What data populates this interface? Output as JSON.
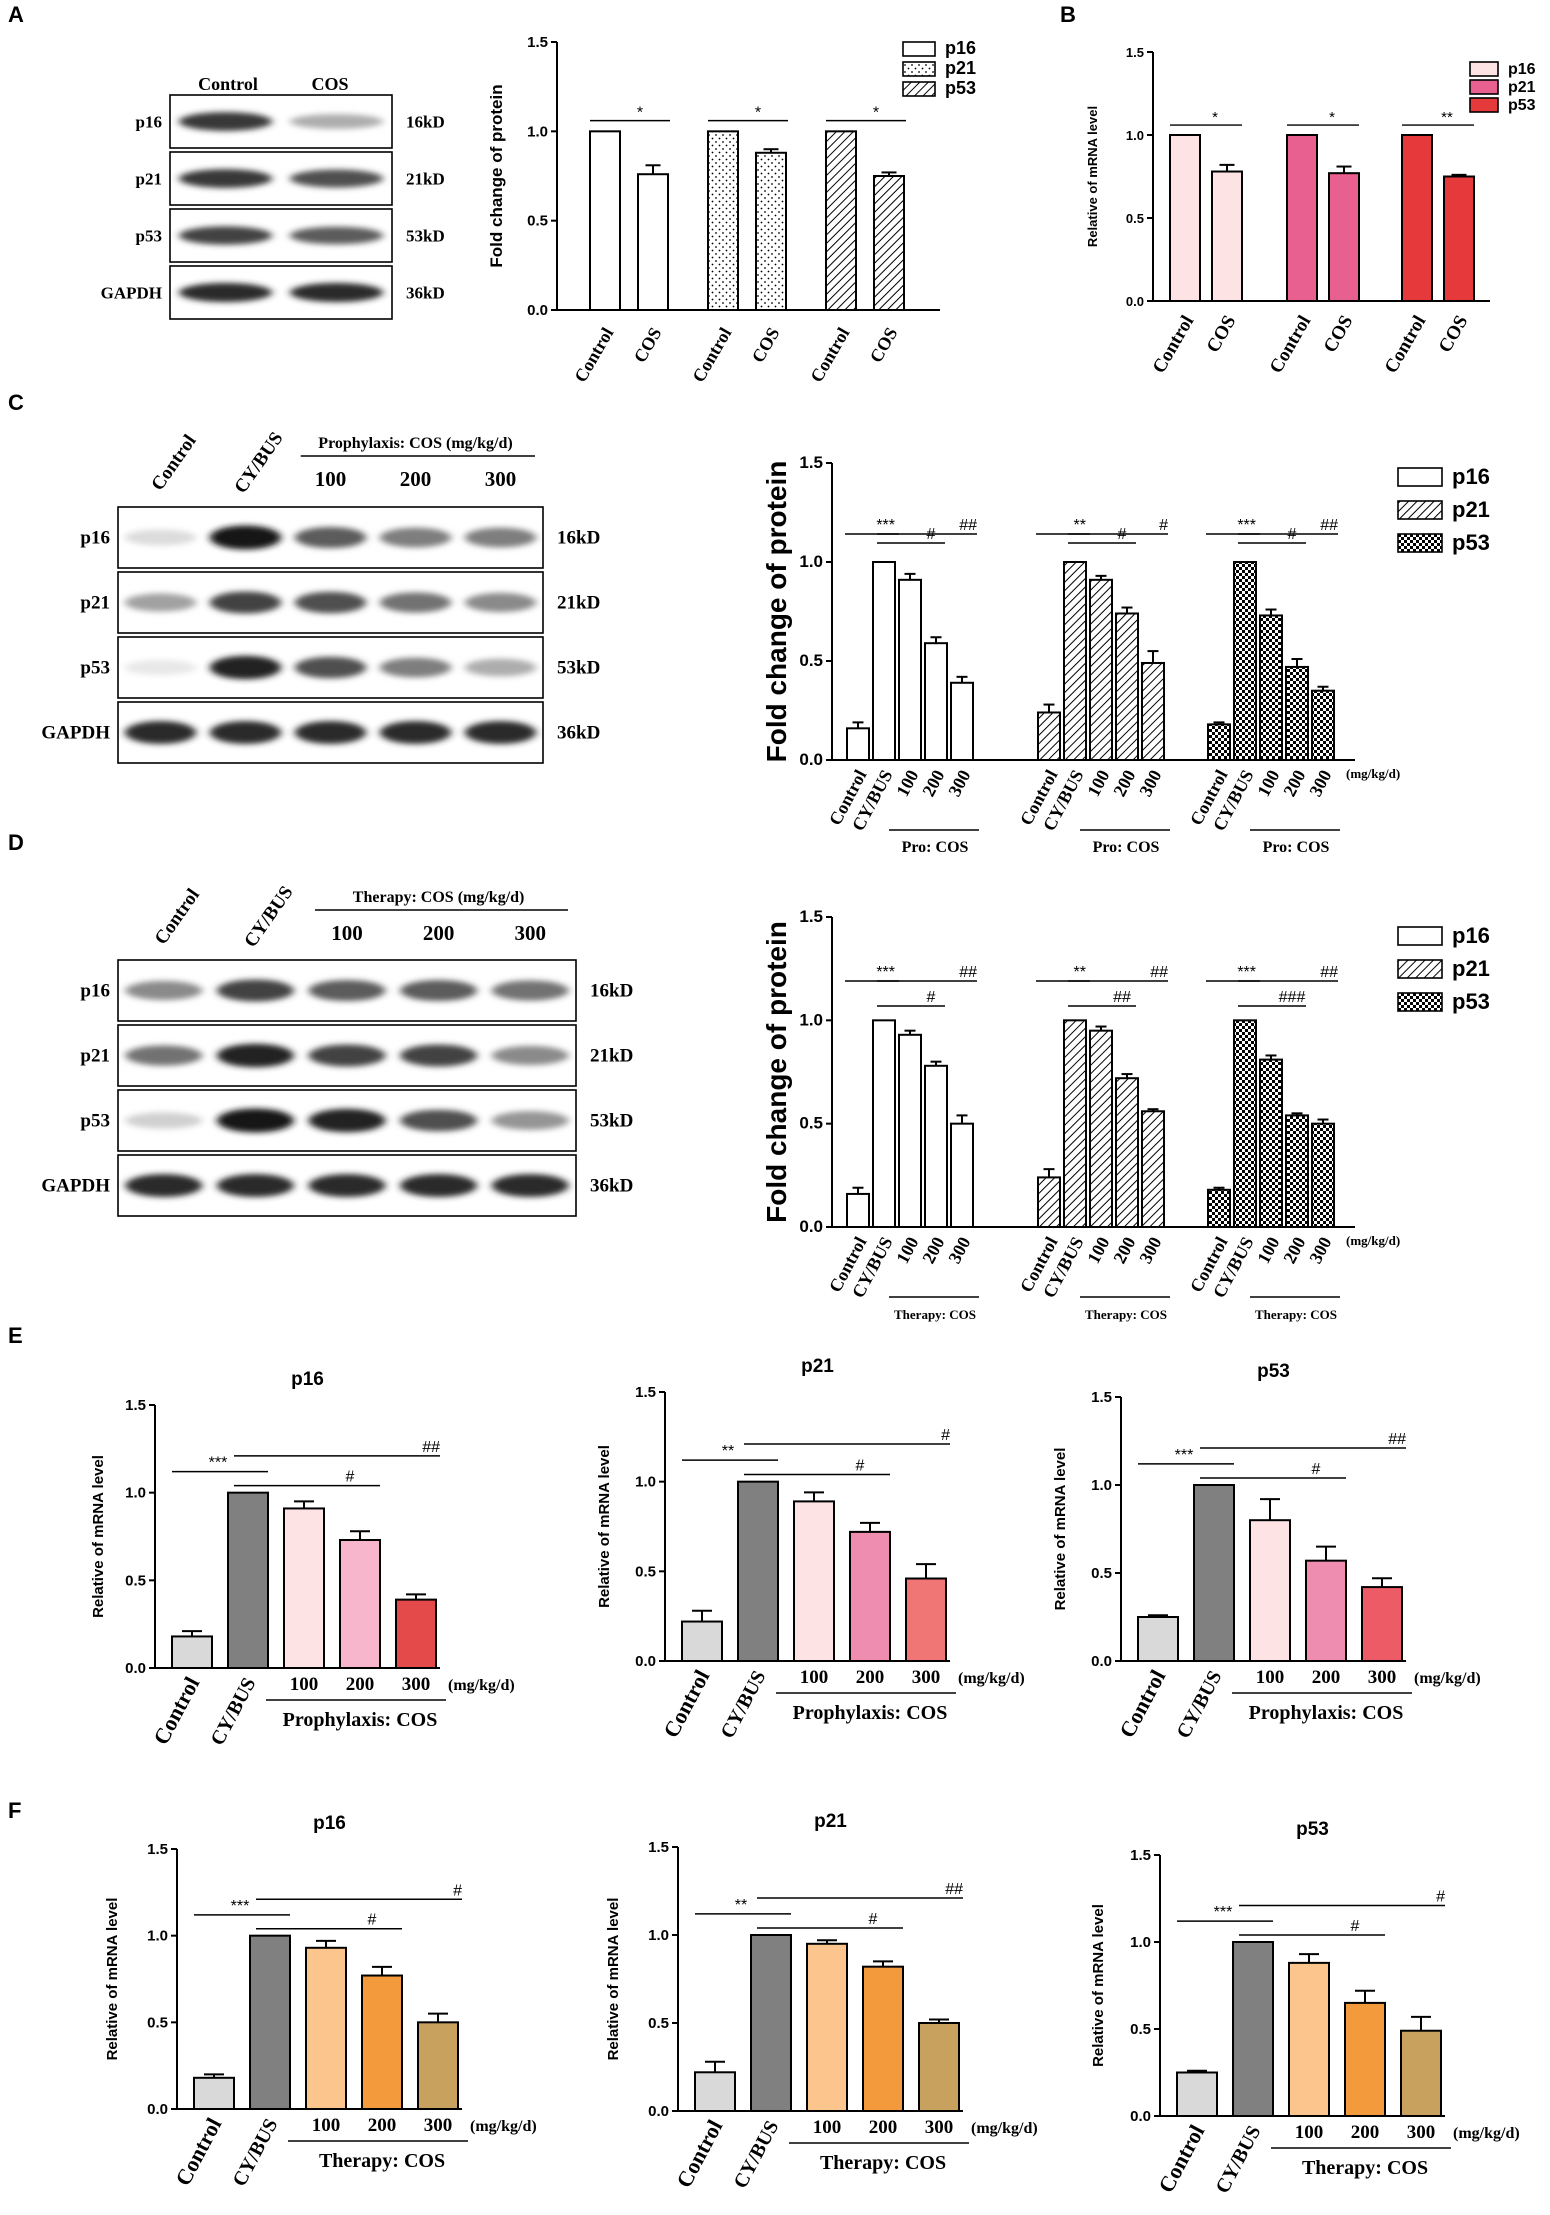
{
  "panels": [
    {
      "id": "A",
      "letter": "A"
    },
    {
      "id": "B",
      "letter": "B"
    },
    {
      "id": "C",
      "letter": "C"
    },
    {
      "id": "D",
      "letter": "D"
    },
    {
      "id": "E",
      "letter": "E"
    },
    {
      "id": "F",
      "letter": "F"
    }
  ],
  "blots": {
    "A": {
      "lanes": [
        "Control",
        "COS"
      ],
      "rows": [
        {
          "name": "p16",
          "kd": "16kD",
          "intensity": [
            0.85,
            0.35
          ]
        },
        {
          "name": "p21",
          "kd": "21kD",
          "intensity": [
            0.85,
            0.75
          ]
        },
        {
          "name": "p53",
          "kd": "53kD",
          "intensity": [
            0.8,
            0.7
          ]
        },
        {
          "name": "GAPDH",
          "kd": "36kD",
          "intensity": [
            0.9,
            0.9
          ]
        }
      ]
    },
    "C": {
      "lanes": [
        "Control",
        "CY/BUS"
      ],
      "group_label": "Prophylaxis: COS (mg/kg/d)",
      "doses": [
        "100",
        "200",
        "300"
      ],
      "rows": [
        {
          "name": "p16",
          "kd": "16kD",
          "intensity": [
            0.15,
            1.0,
            0.7,
            0.55,
            0.55
          ]
        },
        {
          "name": "p21",
          "kd": "21kD",
          "intensity": [
            0.4,
            0.8,
            0.75,
            0.6,
            0.5
          ]
        },
        {
          "name": "p53",
          "kd": "53kD",
          "intensity": [
            0.1,
            0.95,
            0.75,
            0.55,
            0.35
          ]
        },
        {
          "name": "GAPDH",
          "kd": "36kD",
          "intensity": [
            0.9,
            0.9,
            0.9,
            0.9,
            0.9
          ]
        }
      ]
    },
    "D": {
      "lanes": [
        "Control",
        "CY/BUS"
      ],
      "group_label": "Therapy: COS (mg/kg/d)",
      "doses": [
        "100",
        "200",
        "300"
      ],
      "rows": [
        {
          "name": "p16",
          "kd": "16kD",
          "intensity": [
            0.5,
            0.8,
            0.7,
            0.7,
            0.6
          ]
        },
        {
          "name": "p21",
          "kd": "21kD",
          "intensity": [
            0.6,
            0.95,
            0.8,
            0.8,
            0.5
          ]
        },
        {
          "name": "p53",
          "kd": "53kD",
          "intensity": [
            0.2,
            1.0,
            0.95,
            0.75,
            0.45
          ]
        },
        {
          "name": "GAPDH",
          "kd": "36kD",
          "intensity": [
            0.9,
            0.9,
            0.9,
            0.9,
            0.9
          ]
        }
      ]
    }
  },
  "chart_data": [
    {
      "id": "A",
      "type": "bar",
      "ylabel": "Fold change of protein",
      "ylim": [
        0,
        1.5
      ],
      "yticks": [
        "0.0",
        "0.5",
        "1.0",
        "1.5"
      ],
      "legend": [
        "p16",
        "p21",
        "p53"
      ],
      "legend_position": "top-right",
      "categories": [
        "Control",
        "COS"
      ],
      "series": [
        {
          "name": "p16",
          "values": [
            1.0,
            0.76
          ],
          "errors": [
            0,
            0.05
          ],
          "sig": "*"
        },
        {
          "name": "p21",
          "values": [
            1.0,
            0.88
          ],
          "errors": [
            0,
            0.02
          ],
          "sig": "*"
        },
        {
          "name": "p53",
          "values": [
            1.0,
            0.75
          ],
          "errors": [
            0,
            0.02
          ],
          "sig": "*"
        }
      ]
    },
    {
      "id": "B",
      "type": "bar",
      "ylabel": "Relative of mRNA level",
      "ylim": [
        0,
        1.5
      ],
      "yticks": [
        "0.0",
        "0.5",
        "1.0",
        "1.5"
      ],
      "legend": [
        "p16",
        "p21",
        "p53"
      ],
      "legend_position": "top-right",
      "categories": [
        "Control",
        "COS"
      ],
      "colors": [
        "#fde3e3",
        "#e8608f",
        "#e6393b"
      ],
      "series": [
        {
          "name": "p16",
          "values": [
            1.0,
            0.78
          ],
          "errors": [
            0,
            0.04
          ],
          "sig": "*"
        },
        {
          "name": "p21",
          "values": [
            1.0,
            0.77
          ],
          "errors": [
            0,
            0.04
          ],
          "sig": "*"
        },
        {
          "name": "p53",
          "values": [
            1.0,
            0.75
          ],
          "errors": [
            0,
            0.01
          ],
          "sig": "**"
        }
      ]
    },
    {
      "id": "C",
      "type": "bar",
      "ylabel": "Fold change of protein",
      "ylim": [
        0,
        1.5
      ],
      "yticks": [
        "0.0",
        "0.5",
        "1.0",
        "1.5"
      ],
      "legend": [
        "p16",
        "p21",
        "p53"
      ],
      "legend_position": "top-right",
      "categories": [
        "Control",
        "CY/BUS",
        "100",
        "200",
        "300"
      ],
      "group_label": "Pro: COS",
      "unit": "(mg/kg/d)",
      "series": [
        {
          "name": "p16",
          "values": [
            0.16,
            1.0,
            0.91,
            0.59,
            0.39
          ],
          "errors": [
            0.03,
            0,
            0.03,
            0.03,
            0.03
          ],
          "sig": [
            "***",
            "#",
            "##"
          ]
        },
        {
          "name": "p21",
          "values": [
            0.24,
            1.0,
            0.91,
            0.74,
            0.49
          ],
          "errors": [
            0.04,
            0,
            0.02,
            0.03,
            0.06
          ],
          "sig": [
            "**",
            "#",
            "#"
          ]
        },
        {
          "name": "p53",
          "values": [
            0.18,
            1.0,
            0.73,
            0.47,
            0.35
          ],
          "errors": [
            0.01,
            0,
            0.03,
            0.04,
            0.02
          ],
          "sig": [
            "***",
            "#",
            "##"
          ]
        }
      ]
    },
    {
      "id": "D",
      "type": "bar",
      "ylabel": "Fold change of protein",
      "ylim": [
        0,
        1.5
      ],
      "yticks": [
        "0.0",
        "0.5",
        "1.0",
        "1.5"
      ],
      "legend": [
        "p16",
        "p21",
        "p53"
      ],
      "legend_position": "top-right",
      "categories": [
        "Control",
        "CY/BUS",
        "100",
        "200",
        "300"
      ],
      "group_label": "Therapy: COS",
      "unit": "(mg/kg/d)",
      "series": [
        {
          "name": "p16",
          "values": [
            0.16,
            1.0,
            0.93,
            0.78,
            0.5
          ],
          "errors": [
            0.03,
            0,
            0.02,
            0.02,
            0.04
          ],
          "sig": [
            "***",
            "#",
            "##"
          ]
        },
        {
          "name": "p21",
          "values": [
            0.24,
            1.0,
            0.95,
            0.72,
            0.56
          ],
          "errors": [
            0.04,
            0,
            0.02,
            0.02,
            0.01
          ],
          "sig": [
            "**",
            "##",
            "##"
          ]
        },
        {
          "name": "p53",
          "values": [
            0.18,
            1.0,
            0.81,
            0.54,
            0.5
          ],
          "errors": [
            0.01,
            0,
            0.02,
            0.01,
            0.02
          ],
          "sig": [
            "***",
            "###",
            "##"
          ]
        }
      ]
    },
    {
      "id": "E1",
      "type": "bar",
      "title": "p16",
      "ylabel": "Relative of mRNA level",
      "ylim": [
        0,
        1.5
      ],
      "yticks": [
        "0.0",
        "0.5",
        "1.0",
        "1.5"
      ],
      "categories": [
        "Control",
        "CY/BUS",
        "100",
        "200",
        "300"
      ],
      "unit": "(mg/kg/d)",
      "group_label": "Prophylaxis: COS",
      "values": [
        0.18,
        1.0,
        0.91,
        0.73,
        0.39
      ],
      "errors": [
        0.03,
        0,
        0.04,
        0.05,
        0.03
      ],
      "colors": [
        "#d9d9d9",
        "#808080",
        "#fde3e3",
        "#f7b6cc",
        "#e44a4a"
      ],
      "sig": [
        "***",
        "#",
        "##"
      ]
    },
    {
      "id": "E2",
      "type": "bar",
      "title": "p21",
      "ylabel": "Relative of mRNA level",
      "ylim": [
        0,
        1.5
      ],
      "yticks": [
        "0.0",
        "0.5",
        "1.0",
        "1.5"
      ],
      "categories": [
        "Control",
        "CY/BUS",
        "100",
        "200",
        "300"
      ],
      "unit": "(mg/kg/d)",
      "group_label": "Prophylaxis: COS",
      "values": [
        0.22,
        1.0,
        0.89,
        0.72,
        0.46
      ],
      "errors": [
        0.06,
        0,
        0.05,
        0.05,
        0.08
      ],
      "colors": [
        "#d9d9d9",
        "#808080",
        "#fde3e3",
        "#ee8db0",
        "#f07676"
      ],
      "sig": [
        "**",
        "#",
        "#"
      ]
    },
    {
      "id": "E3",
      "type": "bar",
      "title": "p53",
      "ylabel": "Relative of mRNA level",
      "ylim": [
        0,
        1.5
      ],
      "yticks": [
        "0.0",
        "0.5",
        "1.0",
        "1.5"
      ],
      "categories": [
        "Control",
        "CY/BUS",
        "100",
        "200",
        "300"
      ],
      "unit": "(mg/kg/d)",
      "group_label": "Prophylaxis: COS",
      "values": [
        0.25,
        1.0,
        0.8,
        0.57,
        0.42
      ],
      "errors": [
        0.01,
        0,
        0.12,
        0.08,
        0.05
      ],
      "colors": [
        "#d9d9d9",
        "#808080",
        "#fde3e3",
        "#ee8db0",
        "#ec5b66"
      ],
      "sig": [
        "***",
        "#",
        "##"
      ]
    },
    {
      "id": "F1",
      "type": "bar",
      "title": "p16",
      "ylabel": "Relative of mRNA level",
      "ylim": [
        0,
        1.5
      ],
      "yticks": [
        "0.0",
        "0.5",
        "1.0",
        "1.5"
      ],
      "categories": [
        "Control",
        "CY/BUS",
        "100",
        "200",
        "300"
      ],
      "unit": "(mg/kg/d)",
      "group_label": "Therapy: COS",
      "values": [
        0.18,
        1.0,
        0.93,
        0.77,
        0.5
      ],
      "errors": [
        0.02,
        0,
        0.04,
        0.05,
        0.05
      ],
      "colors": [
        "#d9d9d9",
        "#808080",
        "#fcc58e",
        "#f39a3c",
        "#c9a15e"
      ],
      "sig": [
        "***",
        "#",
        "#"
      ]
    },
    {
      "id": "F2",
      "type": "bar",
      "title": "p21",
      "ylabel": "Relative of mRNA level",
      "ylim": [
        0,
        1.5
      ],
      "yticks": [
        "0.0",
        "0.5",
        "1.0",
        "1.5"
      ],
      "categories": [
        "Control",
        "CY/BUS",
        "100",
        "200",
        "300"
      ],
      "unit": "(mg/kg/d)",
      "group_label": "Therapy: COS",
      "values": [
        0.22,
        1.0,
        0.95,
        0.82,
        0.5
      ],
      "errors": [
        0.06,
        0,
        0.02,
        0.03,
        0.02
      ],
      "colors": [
        "#d9d9d9",
        "#808080",
        "#fcc58e",
        "#f39a3c",
        "#c9a15e"
      ],
      "sig": [
        "**",
        "#",
        "##"
      ]
    },
    {
      "id": "F3",
      "type": "bar",
      "title": "p53",
      "ylabel": "Relative of mRNA level",
      "ylim": [
        0,
        1.5
      ],
      "yticks": [
        "0.0",
        "0.5",
        "1.0",
        "1.5"
      ],
      "categories": [
        "Control",
        "CY/BUS",
        "100",
        "200",
        "300"
      ],
      "unit": "(mg/kg/d)",
      "group_label": "Therapy: COS",
      "values": [
        0.25,
        1.0,
        0.88,
        0.65,
        0.49
      ],
      "errors": [
        0.01,
        0,
        0.05,
        0.07,
        0.08
      ],
      "colors": [
        "#d9d9d9",
        "#808080",
        "#fcc58e",
        "#f39a3c",
        "#c9a15e"
      ],
      "sig": [
        "***",
        "#",
        "#"
      ]
    }
  ]
}
